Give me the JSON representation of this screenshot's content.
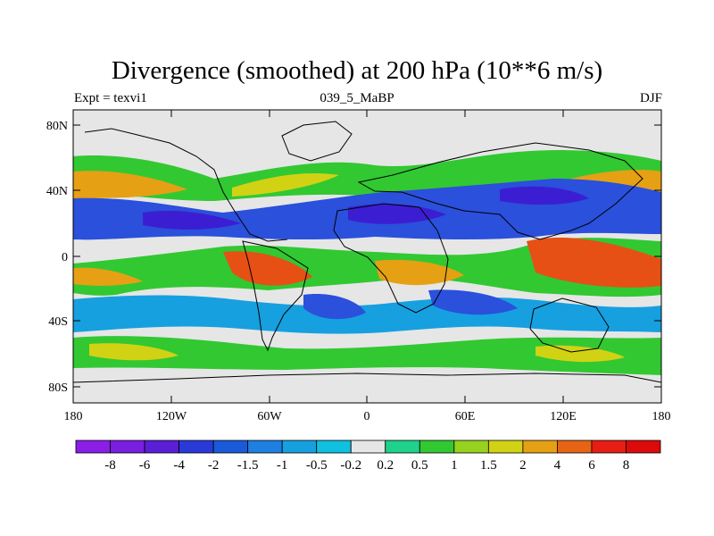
{
  "title": "Divergence (smoothed) at 200 hPa (10**6 m/s)",
  "left_string": "Expt = texvi1",
  "center_string": "039_5_MaBP",
  "right_string": "DJF",
  "lat_ticks": [
    "80N",
    "40N",
    "0",
    "40S",
    "80S"
  ],
  "lon_ticks": [
    "180",
    "120W",
    "60W",
    "0",
    "60E",
    "120E",
    "180"
  ],
  "colorbar": {
    "labels": [
      "-8",
      "-6",
      "-4",
      "-2",
      "-1.5",
      "-1",
      "-0.5",
      "-0.2",
      "0.2",
      "0.5",
      "1",
      "1.5",
      "2",
      "4",
      "6",
      "8"
    ],
    "colors": [
      "#8a1ee6",
      "#7a1ee0",
      "#5a1ed6",
      "#2a3ad9",
      "#1a5ad8",
      "#1e80e0",
      "#16a0e0",
      "#10c0e0",
      "#e6e6e6",
      "#1ed28c",
      "#32c832",
      "#96d21e",
      "#d2d214",
      "#e6a014",
      "#e66414",
      "#e61e14",
      "#dc0a0a"
    ]
  },
  "colors": {
    "ocean_background": "#e6e6e6",
    "neg_strong": "#3c1ed2",
    "neg_mid": "#2a50dc",
    "neg_weak": "#16a0e0",
    "pos_weak": "#32c832",
    "pos_mid": "#d2d214",
    "pos_strong": "#e6a014",
    "pos_peak": "#e65014"
  }
}
